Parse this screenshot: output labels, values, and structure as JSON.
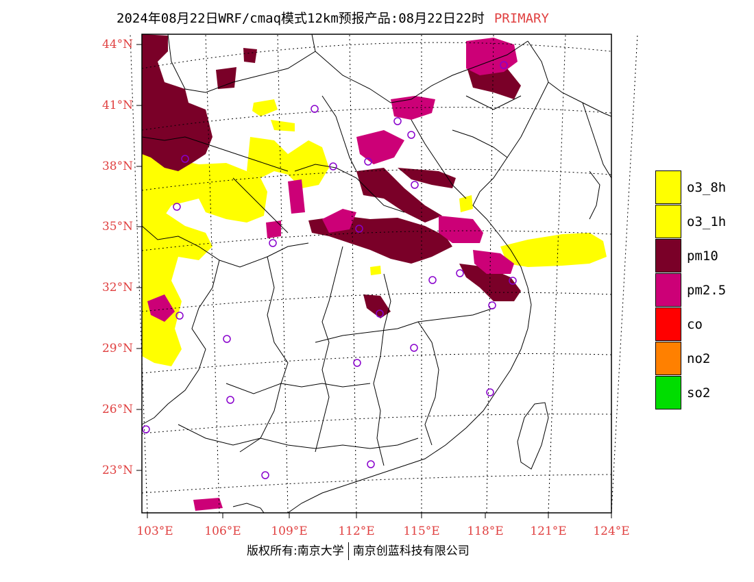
{
  "title": {
    "text": "2024年08月22日WRF/cmaq模式12km预报产品:08月22日22时",
    "tag": "PRIMARY"
  },
  "axes": {
    "lat_labels": [
      "44°N",
      "41°N",
      "38°N",
      "35°N",
      "32°N",
      "29°N",
      "26°N",
      "23°N"
    ],
    "lon_labels": [
      "103°E",
      "106°E",
      "109°E",
      "112°E",
      "115°E",
      "118°E",
      "121°E",
      "124°E"
    ]
  },
  "legend": [
    {
      "label": "o3_8h",
      "color": "#ffff00"
    },
    {
      "label": "o3_1h",
      "color": "#ffff00"
    },
    {
      "label": "pm10",
      "color": "#7a0028"
    },
    {
      "label": "pm2.5",
      "color": "#cc0077"
    },
    {
      "label": "co",
      "color": "#ff0000"
    },
    {
      "label": "no2",
      "color": "#ff8000"
    },
    {
      "label": "so2",
      "color": "#00dd00"
    }
  ],
  "footer": {
    "left": "版权所有:南京大学",
    "right": "南京创蓝科技有限公司"
  },
  "colors": {
    "axis_label": "#e04040",
    "station_marker": "#8800cc"
  }
}
